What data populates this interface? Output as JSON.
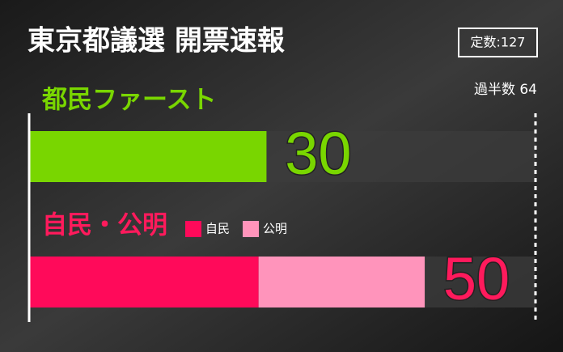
{
  "chart_data": {
    "type": "bar",
    "title": "東京都議選 開票速報",
    "seats": {
      "value": 127,
      "label": "定数:127"
    },
    "majority": {
      "value": 64,
      "label": "過半数 64"
    },
    "xlim": [
      0,
      64
    ],
    "groups": [
      {
        "name": "都民ファースト",
        "color": "#79d600",
        "total": 30,
        "segments": [
          {
            "value": 30,
            "color": "#79d600"
          }
        ]
      },
      {
        "name": "自民・公明",
        "color": "#ff1a5c",
        "total": 50,
        "segments": [
          {
            "name": "自民",
            "value": 29,
            "color": "#ff0a5a"
          },
          {
            "name": "公明",
            "value": 21,
            "color": "#ff94bb"
          }
        ]
      }
    ]
  }
}
